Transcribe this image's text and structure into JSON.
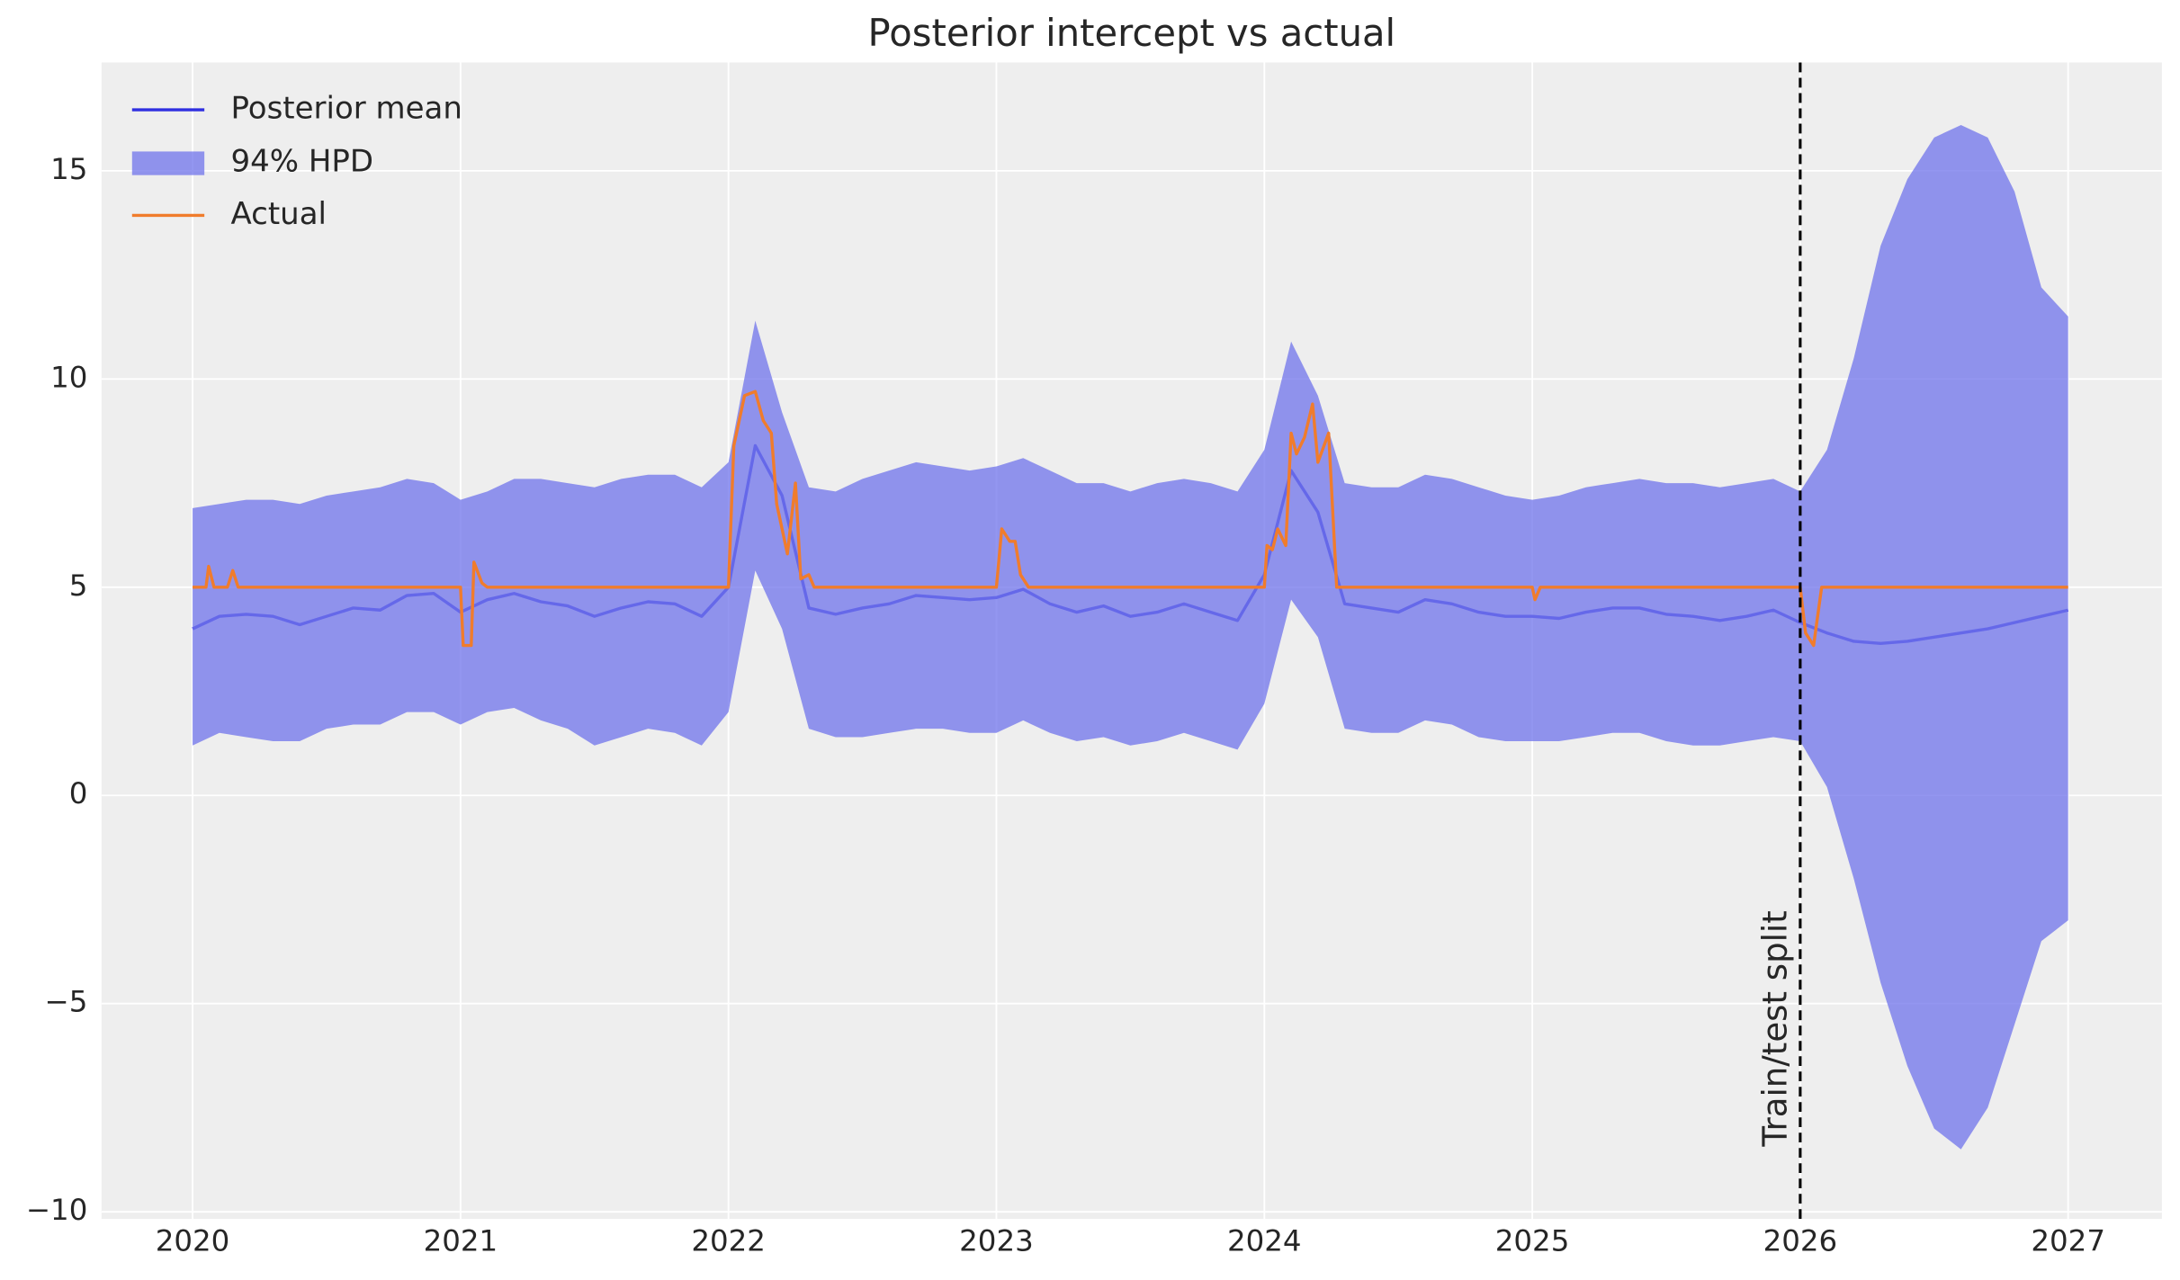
{
  "chart_data": {
    "type": "line",
    "title": "Posterior intercept vs actual",
    "xlim": [
      2019.66,
      2027.35
    ],
    "xticks": [
      2020,
      2021,
      2022,
      2023,
      2024,
      2025,
      2026,
      2027
    ],
    "ylim": [
      -10.17,
      17.6
    ],
    "yticks": [
      {
        "value": -10,
        "label": "−10"
      },
      {
        "value": -5,
        "label": "−5"
      },
      0,
      5,
      10,
      15
    ],
    "grid": true,
    "legend": "upper left",
    "x": [
      2020.0,
      2020.1,
      2020.2,
      2020.3,
      2020.4,
      2020.5,
      2020.6,
      2020.7,
      2020.8,
      2020.9,
      2021.0,
      2021.1,
      2021.2,
      2021.3,
      2021.4,
      2021.5,
      2021.6,
      2021.7,
      2021.8,
      2021.9,
      2022.0,
      2022.1,
      2022.2,
      2022.3,
      2022.4,
      2022.5,
      2022.6,
      2022.7,
      2022.8,
      2022.9,
      2023.0,
      2023.1,
      2023.2,
      2023.3,
      2023.4,
      2023.5,
      2023.6,
      2023.7,
      2023.8,
      2023.9,
      2024.0,
      2024.1,
      2024.2,
      2024.3,
      2024.4,
      2024.5,
      2024.6,
      2024.7,
      2024.8,
      2024.9,
      2025.0,
      2025.1,
      2025.2,
      2025.3,
      2025.4,
      2025.5,
      2025.6,
      2025.7,
      2025.8,
      2025.9,
      2026.0,
      2026.1,
      2026.2,
      2026.3,
      2026.4,
      2026.5,
      2026.6,
      2026.7,
      2026.8,
      2026.9,
      2027.0
    ],
    "series": [
      {
        "name": "Posterior mean",
        "color": "#2f2fe0",
        "values": [
          4.0,
          4.3,
          4.35,
          4.3,
          4.1,
          4.3,
          4.5,
          4.45,
          4.8,
          4.85,
          4.4,
          4.7,
          4.85,
          4.65,
          4.55,
          4.3,
          4.5,
          4.65,
          4.6,
          4.3,
          5.0,
          8.4,
          7.2,
          4.5,
          4.35,
          4.5,
          4.6,
          4.8,
          4.75,
          4.7,
          4.75,
          4.95,
          4.6,
          4.4,
          4.55,
          4.3,
          4.4,
          4.6,
          4.4,
          4.2,
          5.3,
          7.8,
          6.8,
          4.6,
          4.5,
          4.4,
          4.7,
          4.6,
          4.4,
          4.3,
          4.3,
          4.25,
          4.4,
          4.5,
          4.5,
          4.35,
          4.3,
          4.2,
          4.3,
          4.45,
          4.15,
          3.9,
          3.7,
          3.65,
          3.7,
          3.8,
          3.9,
          4.0,
          4.15,
          4.3,
          4.45
        ]
      },
      {
        "name": "94% HPD",
        "color": "#7479ec",
        "lower": [
          1.2,
          1.5,
          1.4,
          1.3,
          1.3,
          1.6,
          1.7,
          1.7,
          2.0,
          2.0,
          1.7,
          2.0,
          2.1,
          1.8,
          1.6,
          1.2,
          1.4,
          1.6,
          1.5,
          1.2,
          2.0,
          5.4,
          4.0,
          1.6,
          1.4,
          1.4,
          1.5,
          1.6,
          1.6,
          1.5,
          1.5,
          1.8,
          1.5,
          1.3,
          1.4,
          1.2,
          1.3,
          1.5,
          1.3,
          1.1,
          2.2,
          4.7,
          3.8,
          1.6,
          1.5,
          1.5,
          1.8,
          1.7,
          1.4,
          1.3,
          1.3,
          1.3,
          1.4,
          1.5,
          1.5,
          1.3,
          1.2,
          1.2,
          1.3,
          1.4,
          1.3,
          0.2,
          -2.0,
          -4.5,
          -6.5,
          -8.0,
          -8.5,
          -7.5,
          -5.5,
          -3.5,
          -3.0
        ],
        "upper": [
          6.9,
          7.0,
          7.1,
          7.1,
          7.0,
          7.2,
          7.3,
          7.4,
          7.6,
          7.5,
          7.1,
          7.3,
          7.6,
          7.6,
          7.5,
          7.4,
          7.6,
          7.7,
          7.7,
          7.4,
          8.0,
          11.4,
          9.2,
          7.4,
          7.3,
          7.6,
          7.8,
          8.0,
          7.9,
          7.8,
          7.9,
          8.1,
          7.8,
          7.5,
          7.5,
          7.3,
          7.5,
          7.6,
          7.5,
          7.3,
          8.3,
          10.9,
          9.6,
          7.5,
          7.4,
          7.4,
          7.7,
          7.6,
          7.4,
          7.2,
          7.1,
          7.2,
          7.4,
          7.5,
          7.6,
          7.5,
          7.5,
          7.4,
          7.5,
          7.6,
          7.3,
          8.3,
          10.5,
          13.2,
          14.8,
          15.8,
          16.1,
          15.8,
          14.5,
          12.2,
          11.5
        ]
      },
      {
        "name": "Actual",
        "color": "#f07c2c",
        "x": [
          2020.0,
          2020.05,
          2020.06,
          2020.08,
          2020.13,
          2020.15,
          2020.17,
          2021.0,
          2021.01,
          2021.04,
          2021.05,
          2021.08,
          2021.1,
          2022.0,
          2022.02,
          2022.06,
          2022.1,
          2022.13,
          2022.16,
          2022.18,
          2022.22,
          2022.25,
          2022.27,
          2022.3,
          2022.32,
          2023.0,
          2023.02,
          2023.05,
          2023.07,
          2023.09,
          2023.12,
          2024.0,
          2024.01,
          2024.03,
          2024.05,
          2024.08,
          2024.1,
          2024.12,
          2024.15,
          2024.18,
          2024.2,
          2024.24,
          2024.27,
          2025.0,
          2025.01,
          2025.03,
          2026.0,
          2026.02,
          2026.05,
          2026.08,
          2027.0
        ],
        "values": [
          5,
          5,
          5.5,
          5,
          5,
          5.4,
          5,
          5,
          3.6,
          3.6,
          5.6,
          5.1,
          5,
          5,
          8.4,
          9.6,
          9.7,
          9.0,
          8.7,
          7.0,
          5.8,
          7.5,
          5.2,
          5.3,
          5,
          5,
          6.4,
          6.1,
          6.1,
          5.3,
          5,
          5,
          6.0,
          5.9,
          6.4,
          6.0,
          8.7,
          8.2,
          8.6,
          9.4,
          8.0,
          8.7,
          5.0,
          5,
          4.7,
          5,
          5,
          3.9,
          3.6,
          5,
          5
        ]
      }
    ],
    "annotations": [
      {
        "x": 2026,
        "text": "Train/test split"
      }
    ]
  }
}
